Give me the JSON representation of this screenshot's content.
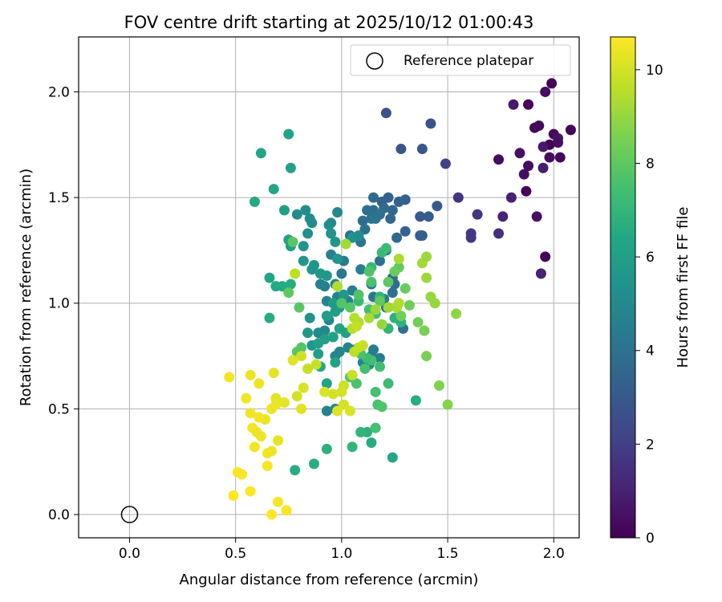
{
  "chart_data": {
    "type": "scatter",
    "title": "FOV centre drift starting at 2025/10/12 01:00:43",
    "xlabel": "Angular distance from reference (arcmin)",
    "ylabel": "Rotation from reference (arcmin)",
    "xlim": [
      -0.24,
      2.12
    ],
    "ylim": [
      -0.11,
      2.26
    ],
    "xticks": [
      0.0,
      0.5,
      1.0,
      1.5,
      2.0
    ],
    "xtick_labels": [
      "0.0",
      "0.5",
      "1.0",
      "1.5",
      "2.0"
    ],
    "yticks": [
      0.0,
      0.5,
      1.0,
      1.5,
      2.0
    ],
    "ytick_labels": [
      "0.0",
      "0.5",
      "1.0",
      "1.5",
      "2.0"
    ],
    "grid": true,
    "legend": {
      "placement": "top-right",
      "entries": [
        {
          "label": "Reference platepar",
          "marker": "open-circle",
          "color": "#000000"
        }
      ]
    },
    "reference_point": {
      "x": 0.0,
      "y": 0.0
    },
    "colorbar": {
      "label": "Hours from first FF file",
      "colormap": "viridis",
      "range": [
        0,
        10.7
      ],
      "ticks": [
        0,
        2,
        4,
        6,
        8,
        10
      ],
      "tick_labels": [
        "0",
        "2",
        "4",
        "6",
        "8",
        "10"
      ]
    },
    "points": [
      [
        1.99,
        2.04,
        0.1
      ],
      [
        1.96,
        2.0,
        0.35
      ],
      [
        1.88,
        1.94,
        0.15
      ],
      [
        1.81,
        1.94,
        0.75
      ],
      [
        2.08,
        1.82,
        0.1
      ],
      [
        1.93,
        1.84,
        0.25
      ],
      [
        2.0,
        1.8,
        0.2
      ],
      [
        1.91,
        1.83,
        0.2
      ],
      [
        2.02,
        1.78,
        0.6
      ],
      [
        1.98,
        1.75,
        0.05
      ],
      [
        2.02,
        1.76,
        0.45
      ],
      [
        1.95,
        1.74,
        0.7
      ],
      [
        1.84,
        1.71,
        0.5
      ],
      [
        1.88,
        1.65,
        0.4
      ],
      [
        1.74,
        1.68,
        0.3
      ],
      [
        1.98,
        1.69,
        0.35
      ],
      [
        2.03,
        1.69,
        0.15
      ],
      [
        1.95,
        1.64,
        0.85
      ],
      [
        1.86,
        1.61,
        0.45
      ],
      [
        1.87,
        1.53,
        0.1
      ],
      [
        1.8,
        1.5,
        1.0
      ],
      [
        1.76,
        1.41,
        1.1
      ],
      [
        1.92,
        1.41,
        0.4
      ],
      [
        1.96,
        1.22,
        0.05
      ],
      [
        1.94,
        1.14,
        1.0
      ],
      [
        1.74,
        1.33,
        1.5
      ],
      [
        1.64,
        1.42,
        1.6
      ],
      [
        1.61,
        1.33,
        1.8
      ],
      [
        1.61,
        1.31,
        1.7
      ],
      [
        1.55,
        1.5,
        1.6
      ],
      [
        1.49,
        1.66,
        2.1
      ],
      [
        1.21,
        1.9,
        2.6
      ],
      [
        1.42,
        1.85,
        2.7
      ],
      [
        1.28,
        1.73,
        2.8
      ],
      [
        1.38,
        1.73,
        2.9
      ],
      [
        1.45,
        1.46,
        3.0
      ],
      [
        1.41,
        1.41,
        3.1
      ],
      [
        1.37,
        1.41,
        3.0
      ],
      [
        1.3,
        1.49,
        3.2
      ],
      [
        1.27,
        1.48,
        3.3
      ],
      [
        1.22,
        1.5,
        3.4
      ],
      [
        1.19,
        1.48,
        3.4
      ],
      [
        1.24,
        1.44,
        3.5
      ],
      [
        1.3,
        1.34,
        3.3
      ],
      [
        1.26,
        1.31,
        3.6
      ],
      [
        1.37,
        1.32,
        3.1
      ],
      [
        1.38,
        1.32,
        3.2
      ],
      [
        1.23,
        1.4,
        3.6
      ],
      [
        1.15,
        1.44,
        3.8
      ],
      [
        1.12,
        1.44,
        3.9
      ],
      [
        1.15,
        1.5,
        3.7
      ],
      [
        1.2,
        1.45,
        3.7
      ],
      [
        1.1,
        1.39,
        3.9
      ],
      [
        1.14,
        1.4,
        4.0
      ],
      [
        1.18,
        1.42,
        3.9
      ],
      [
        1.08,
        1.31,
        4.2
      ],
      [
        1.04,
        1.32,
        4.0
      ],
      [
        1.11,
        1.35,
        4.1
      ],
      [
        1.16,
        1.4,
        4.1
      ],
      [
        1.21,
        1.25,
        3.8
      ],
      [
        1.18,
        1.2,
        4.0
      ],
      [
        1.14,
        1.09,
        4.2
      ],
      [
        1.24,
        1.12,
        3.6
      ],
      [
        1.2,
        1.02,
        4.4
      ],
      [
        1.15,
        1.03,
        4.3
      ],
      [
        1.21,
        0.98,
        3.9
      ],
      [
        1.09,
        1.29,
        4.2
      ],
      [
        1.25,
        1.09,
        3.8
      ],
      [
        1.24,
        1.05,
        4.0
      ],
      [
        1.29,
        0.88,
        4.0
      ],
      [
        1.01,
        1.2,
        4.4
      ],
      [
        1.0,
        1.14,
        4.3
      ],
      [
        0.97,
        1.09,
        4.5
      ],
      [
        0.95,
        1.23,
        4.5
      ],
      [
        0.92,
        1.08,
        4.6
      ],
      [
        1.09,
        1.16,
        4.5
      ],
      [
        1.05,
        1.06,
        4.6
      ],
      [
        1.03,
        1.01,
        4.7
      ],
      [
        0.98,
        1.03,
        4.7
      ],
      [
        0.93,
        1.01,
        4.7
      ],
      [
        0.9,
        1.09,
        4.7
      ],
      [
        0.97,
        0.75,
        4.8
      ],
      [
        0.99,
        0.77,
        4.9
      ],
      [
        0.94,
        0.92,
        4.9
      ],
      [
        0.92,
        0.87,
        5.0
      ],
      [
        0.89,
        0.86,
        5.0
      ],
      [
        1.14,
        0.75,
        4.4
      ],
      [
        1.15,
        0.78,
        4.5
      ],
      [
        1.18,
        0.74,
        4.6
      ],
      [
        1.13,
        0.71,
        4.7
      ],
      [
        1.1,
        0.72,
        4.8
      ],
      [
        1.03,
        0.79,
        4.8
      ],
      [
        1.06,
        0.78,
        5.0
      ],
      [
        0.93,
        0.49,
        4.7
      ],
      [
        0.97,
        0.5,
        4.9
      ],
      [
        0.79,
        1.42,
        5.1
      ],
      [
        0.83,
        1.44,
        5.2
      ],
      [
        0.85,
        1.4,
        5.2
      ],
      [
        0.86,
        1.38,
        5.2
      ],
      [
        0.84,
        1.33,
        5.3
      ],
      [
        0.82,
        1.27,
        5.5
      ],
      [
        0.82,
        1.2,
        5.6
      ],
      [
        0.86,
        1.16,
        5.6
      ],
      [
        0.87,
        1.18,
        5.5
      ],
      [
        0.97,
        1.29,
        5.6
      ],
      [
        0.94,
        1.37,
        5.4
      ],
      [
        1.05,
        1.31,
        5.4
      ],
      [
        1.08,
        1.32,
        5.2
      ],
      [
        0.95,
        1.33,
        5.5
      ],
      [
        0.95,
        1.38,
        5.1
      ],
      [
        0.98,
        1.43,
        5.0
      ],
      [
        0.98,
        1.21,
        5.6
      ],
      [
        0.93,
        1.13,
        5.6
      ],
      [
        0.9,
        1.14,
        5.7
      ],
      [
        1.01,
        1.04,
        5.7
      ],
      [
        0.96,
        1.0,
        5.8
      ],
      [
        0.99,
        0.98,
        5.8
      ],
      [
        0.97,
        0.96,
        5.9
      ],
      [
        0.93,
        0.94,
        5.9
      ],
      [
        0.84,
        0.86,
        5.7
      ],
      [
        0.85,
        0.93,
        5.5
      ],
      [
        0.86,
        0.8,
        5.7
      ],
      [
        0.89,
        0.76,
        6.0
      ],
      [
        0.89,
        0.81,
        6.0
      ],
      [
        0.92,
        0.83,
        6.0
      ],
      [
        0.96,
        0.84,
        6.1
      ],
      [
        0.99,
        0.88,
        6.2
      ],
      [
        1.02,
        0.86,
        6.1
      ],
      [
        0.97,
        0.72,
        6.2
      ],
      [
        0.9,
        0.7,
        6.4
      ],
      [
        0.93,
        0.62,
        6.2
      ],
      [
        0.76,
        1.27,
        6.0
      ],
      [
        0.75,
        1.3,
        6.1
      ],
      [
        0.73,
        1.44,
        6.0
      ],
      [
        0.76,
        1.64,
        6.1
      ],
      [
        0.75,
        1.8,
        6.2
      ],
      [
        0.62,
        1.71,
        6.3
      ],
      [
        0.68,
        1.54,
        6.3
      ],
      [
        0.59,
        1.48,
        6.5
      ],
      [
        0.66,
        1.12,
        6.3
      ],
      [
        0.69,
        1.08,
        6.4
      ],
      [
        0.72,
        1.08,
        6.5
      ],
      [
        0.76,
        1.09,
        6.6
      ],
      [
        0.66,
        0.93,
        6.6
      ],
      [
        1.24,
        0.27,
        6.4
      ],
      [
        1.14,
        0.34,
        6.6
      ],
      [
        1.12,
        0.39,
        6.8
      ],
      [
        1.09,
        0.39,
        7.0
      ],
      [
        1.35,
        0.54,
        6.6
      ],
      [
        1.28,
        0.91,
        6.9
      ],
      [
        1.25,
        0.93,
        6.8
      ],
      [
        1.22,
        0.88,
        7.0
      ],
      [
        1.18,
        1.03,
        7.0
      ],
      [
        1.14,
        1.17,
        7.1
      ],
      [
        1.19,
        1.24,
        7.1
      ],
      [
        1.21,
        1.26,
        7.2
      ],
      [
        1.08,
        1.01,
        7.2
      ],
      [
        1.13,
        0.97,
        7.4
      ],
      [
        1.16,
        0.95,
        7.4
      ],
      [
        0.78,
        0.21,
        6.6
      ],
      [
        0.87,
        0.24,
        6.7
      ],
      [
        0.93,
        0.31,
        6.8
      ],
      [
        1.05,
        0.32,
        7.0
      ],
      [
        1.16,
        0.41,
        7.5
      ],
      [
        1.17,
        0.52,
        7.6
      ],
      [
        1.19,
        0.51,
        7.7
      ],
      [
        1.16,
        0.58,
        7.5
      ],
      [
        1.22,
        0.62,
        7.3
      ],
      [
        1.18,
        0.7,
        7.4
      ],
      [
        1.14,
        0.73,
        7.5
      ],
      [
        1.12,
        0.74,
        7.3
      ],
      [
        1.09,
        0.76,
        7.6
      ],
      [
        1.11,
        0.69,
        7.5
      ],
      [
        1.07,
        0.62,
        7.6
      ],
      [
        1.04,
        0.65,
        7.7
      ],
      [
        0.79,
        0.77,
        7.9
      ],
      [
        0.81,
        0.79,
        7.8
      ],
      [
        0.8,
        0.98,
        7.9
      ],
      [
        0.75,
        1.05,
        8.0
      ],
      [
        0.77,
        1.29,
        7.9
      ],
      [
        1.0,
        1.0,
        7.8
      ],
      [
        1.04,
        0.98,
        7.8
      ],
      [
        1.08,
        1.04,
        7.7
      ],
      [
        1.13,
        1.15,
        7.7
      ],
      [
        1.14,
        1.1,
        7.6
      ],
      [
        1.18,
        1.01,
        8.1
      ],
      [
        1.22,
        1.1,
        8.0
      ],
      [
        1.27,
        1.17,
        8.1
      ],
      [
        1.25,
        1.15,
        8.2
      ],
      [
        1.3,
        1.07,
        8.2
      ],
      [
        1.32,
        0.99,
        8.3
      ],
      [
        1.28,
        0.94,
        8.4
      ],
      [
        1.36,
        0.91,
        8.4
      ],
      [
        1.39,
        0.87,
        8.5
      ],
      [
        1.4,
        0.75,
        8.5
      ],
      [
        1.46,
        0.61,
        8.6
      ],
      [
        1.5,
        0.52,
        8.7
      ],
      [
        1.54,
        0.95,
        8.9
      ],
      [
        1.44,
        1.0,
        9.0
      ],
      [
        1.42,
        1.03,
        9.0
      ],
      [
        1.4,
        1.12,
        9.1
      ],
      [
        1.38,
        1.19,
        9.2
      ],
      [
        1.4,
        1.22,
        9.1
      ],
      [
        1.27,
        1.21,
        9.3
      ],
      [
        1.26,
        0.98,
        9.3
      ],
      [
        1.27,
        1.0,
        9.4
      ],
      [
        1.22,
        0.98,
        9.2
      ],
      [
        1.16,
        0.97,
        9.1
      ],
      [
        1.19,
        0.9,
        9.0
      ],
      [
        1.13,
        0.93,
        9.3
      ],
      [
        1.08,
        0.91,
        9.4
      ],
      [
        1.06,
        0.93,
        9.5
      ],
      [
        1.05,
        0.88,
        9.5
      ],
      [
        1.07,
        0.89,
        9.7
      ],
      [
        1.06,
        0.77,
        9.6
      ],
      [
        1.08,
        0.79,
        9.7
      ],
      [
        1.1,
        0.8,
        9.8
      ],
      [
        1.05,
        0.66,
        9.8
      ],
      [
        1.01,
        0.61,
        9.9
      ],
      [
        1.0,
        0.58,
        10.0
      ],
      [
        0.96,
        0.57,
        10.0
      ],
      [
        1.01,
        0.52,
        10.0
      ],
      [
        1.04,
        0.49,
        10.1
      ],
      [
        0.98,
        0.49,
        10.2
      ],
      [
        0.92,
        0.58,
        10.1
      ],
      [
        0.88,
        0.71,
        9.8
      ],
      [
        0.84,
        0.69,
        9.8
      ],
      [
        0.81,
        0.75,
        9.9
      ],
      [
        0.82,
        0.6,
        10.1
      ],
      [
        0.79,
        0.56,
        10.0
      ],
      [
        0.81,
        0.5,
        10.2
      ],
      [
        0.73,
        0.53,
        10.3
      ],
      [
        0.77,
        0.73,
        10.2
      ],
      [
        0.78,
        1.14,
        9.6
      ],
      [
        0.98,
        1.08,
        9.4
      ],
      [
        1.02,
        1.28,
        9.2
      ],
      [
        0.68,
        0.67,
        10.3
      ],
      [
        0.69,
        0.55,
        10.2
      ],
      [
        0.69,
        0.52,
        10.4
      ],
      [
        0.67,
        0.5,
        10.4
      ],
      [
        0.64,
        0.45,
        10.4
      ],
      [
        0.61,
        0.46,
        10.5
      ],
      [
        0.57,
        0.48,
        10.5
      ],
      [
        0.58,
        0.41,
        10.5
      ],
      [
        0.6,
        0.39,
        10.4
      ],
      [
        0.62,
        0.37,
        10.4
      ],
      [
        0.59,
        0.32,
        10.5
      ],
      [
        0.65,
        0.29,
        10.5
      ],
      [
        0.7,
        0.35,
        10.3
      ],
      [
        0.67,
        0.3,
        10.4
      ],
      [
        0.65,
        0.23,
        10.6
      ],
      [
        0.61,
        0.62,
        10.4
      ],
      [
        0.57,
        0.66,
        10.4
      ],
      [
        0.55,
        0.55,
        10.5
      ],
      [
        0.47,
        0.65,
        10.5
      ],
      [
        0.51,
        0.2,
        10.6
      ],
      [
        0.53,
        0.19,
        10.6
      ],
      [
        0.57,
        0.11,
        10.7
      ],
      [
        0.49,
        0.09,
        10.7
      ],
      [
        0.7,
        0.06,
        10.6
      ],
      [
        0.74,
        0.02,
        10.6
      ],
      [
        0.67,
        0.0,
        10.7
      ]
    ]
  }
}
